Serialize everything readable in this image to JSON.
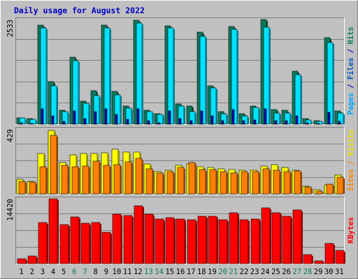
{
  "chart_data": [
    {
      "type": "bar",
      "title": "Daily usage for August 2022",
      "ylabel_top": "2533",
      "right_labels": [
        {
          "text": "Pages",
          "color": "#00a8ff"
        },
        {
          "text": " / ",
          "color": "#0000c0"
        },
        {
          "text": "Files",
          "color": "#0057c0"
        },
        {
          "text": " / ",
          "color": "#0000c0"
        },
        {
          "text": "Hits",
          "color": "#0c7a5c"
        }
      ],
      "ylim": [
        0,
        2533
      ],
      "categories": [
        "1",
        "2",
        "3",
        "4",
        "5",
        "6",
        "7",
        "8",
        "9",
        "10",
        "11",
        "12",
        "13",
        "14",
        "15",
        "16",
        "17",
        "18",
        "19",
        "20",
        "21",
        "22",
        "23",
        "24",
        "25",
        "26",
        "27",
        "28",
        "29",
        "30",
        "31"
      ],
      "series": [
        {
          "name": "Hits",
          "color": "#0c7a5c",
          "values": [
            160,
            130,
            2420,
            1030,
            340,
            1640,
            560,
            810,
            2420,
            800,
            440,
            2530,
            340,
            260,
            2400,
            500,
            450,
            2240,
            940,
            310,
            2380,
            250,
            450,
            2550,
            360,
            340,
            1290,
            140,
            90,
            2100,
            320
          ]
        },
        {
          "name": "Files",
          "color": "#00e0ff",
          "values": [
            150,
            120,
            2340,
            940,
            310,
            1550,
            510,
            690,
            2340,
            720,
            390,
            2470,
            300,
            240,
            2340,
            440,
            310,
            2140,
            890,
            260,
            2320,
            200,
            400,
            2370,
            270,
            270,
            1200,
            100,
            60,
            1990,
            280
          ]
        },
        {
          "name": "Pages",
          "color": "#0000c0",
          "values": [
            40,
            20,
            380,
            200,
            70,
            330,
            140,
            300,
            380,
            230,
            120,
            380,
            80,
            40,
            320,
            130,
            80,
            320,
            200,
            90,
            360,
            80,
            110,
            380,
            90,
            80,
            200,
            30,
            20,
            290,
            60
          ]
        }
      ]
    },
    {
      "type": "bar",
      "ylabel_top": "429",
      "right_labels": [
        {
          "text": "Sites",
          "color": "#ff8000"
        },
        {
          "text": " / ",
          "color": "#ff8000"
        },
        {
          "text": "Visits",
          "color": "#f0e000"
        }
      ],
      "ylim": [
        0,
        429
      ],
      "categories": [
        "1",
        "2",
        "3",
        "4",
        "5",
        "6",
        "7",
        "8",
        "9",
        "10",
        "11",
        "12",
        "13",
        "14",
        "15",
        "16",
        "17",
        "18",
        "19",
        "20",
        "21",
        "22",
        "23",
        "24",
        "25",
        "26",
        "27",
        "28",
        "29",
        "30",
        "31"
      ],
      "series": [
        {
          "name": "Visits",
          "color": "#ffff00",
          "values": [
            100,
            85,
            270,
            425,
            210,
            260,
            270,
            270,
            275,
            300,
            280,
            280,
            200,
            150,
            160,
            190,
            200,
            180,
            175,
            170,
            165,
            160,
            160,
            185,
            195,
            175,
            160,
            50,
            30,
            60,
            125
          ]
        },
        {
          "name": "Sites",
          "color": "#ff8000",
          "values": [
            85,
            80,
            180,
            390,
            190,
            180,
            185,
            220,
            190,
            195,
            215,
            240,
            170,
            140,
            150,
            175,
            210,
            165,
            165,
            150,
            140,
            150,
            150,
            170,
            160,
            150,
            155,
            45,
            20,
            65,
            110
          ]
        }
      ]
    },
    {
      "type": "bar",
      "ylabel_top": "14420",
      "right_labels": [
        {
          "text": "KBytes",
          "color": "#ff0000"
        }
      ],
      "ylim": [
        0,
        14420
      ],
      "categories": [
        "1",
        "2",
        "3",
        "4",
        "5",
        "6",
        "7",
        "8",
        "9",
        "10",
        "11",
        "12",
        "13",
        "14",
        "15",
        "16",
        "17",
        "18",
        "19",
        "20",
        "21",
        "22",
        "23",
        "24",
        "25",
        "26",
        "27",
        "28",
        "29",
        "30",
        "31"
      ],
      "series": [
        {
          "name": "KBytes",
          "color": "#ff0000",
          "values": [
            1150,
            1750,
            9200,
            14500,
            8750,
            10550,
            9150,
            9300,
            7050,
            11200,
            10750,
            12950,
            11200,
            10050,
            10300,
            10100,
            9950,
            10700,
            10600,
            9800,
            11500,
            9950,
            10000,
            12600,
            11400,
            10700,
            12050,
            2100,
            700,
            4550,
            3000
          ]
        }
      ]
    }
  ],
  "x_axis": {
    "labels": [
      "1",
      "2",
      "3",
      "4",
      "5",
      "6",
      "7",
      "8",
      "9",
      "10",
      "11",
      "12",
      "13",
      "14",
      "15",
      "16",
      "17",
      "18",
      "19",
      "20",
      "21",
      "22",
      "23",
      "24",
      "25",
      "26",
      "27",
      "28",
      "29",
      "30",
      "31"
    ],
    "weekend_days": [
      "6",
      "7",
      "13",
      "14",
      "20",
      "21",
      "27",
      "28"
    ],
    "weekday_color": "#000000",
    "weekend_color": "#0c7a5c"
  },
  "colors": {
    "background": "#c0c0c0",
    "title": "#0000c0",
    "gridline": "#808080"
  }
}
